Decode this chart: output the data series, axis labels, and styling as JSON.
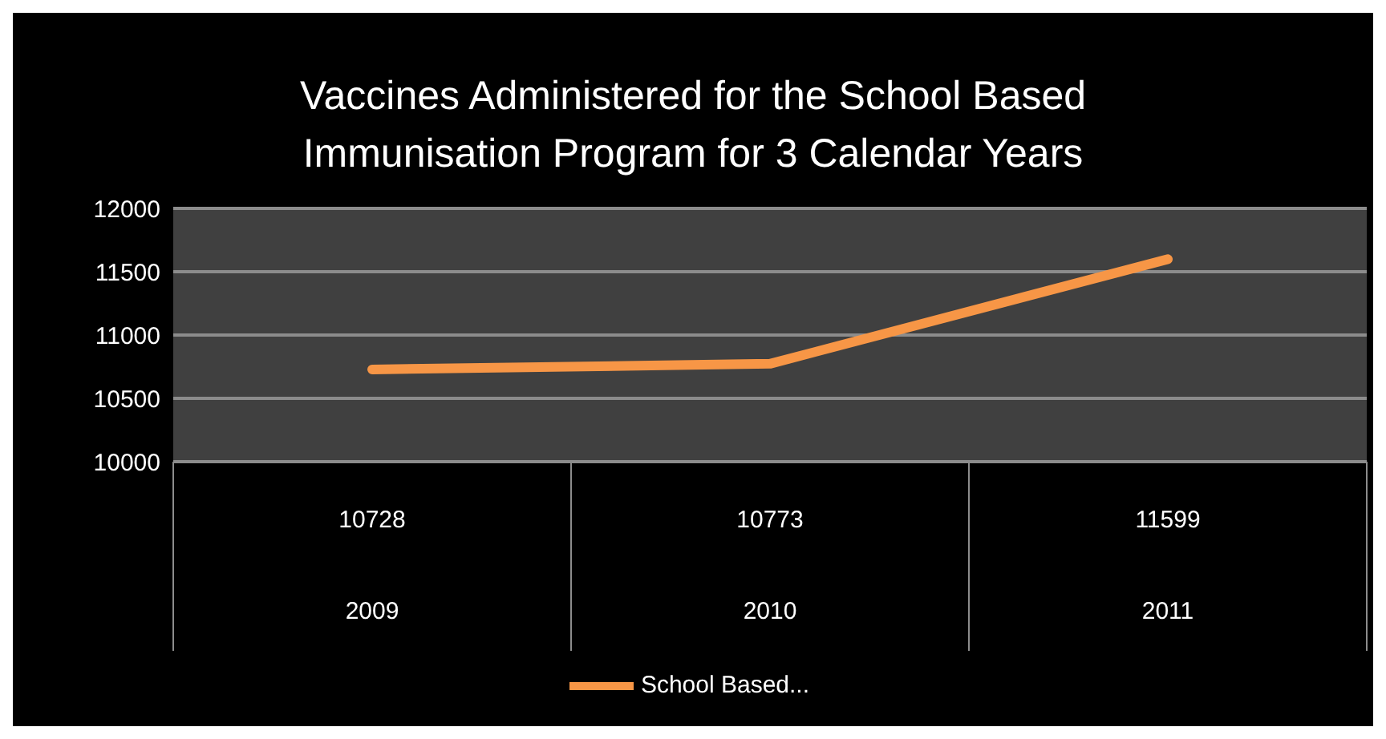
{
  "chart_data": {
    "type": "line",
    "title": "Vaccines Administered for the School Based Immunisation Program  for 3 Calendar Years",
    "categories": [
      "2009",
      "2010",
      "2011"
    ],
    "series": [
      {
        "name": "School Based...",
        "color": "#f79646",
        "values": [
          10728,
          10773,
          11599
        ]
      }
    ],
    "ylim": [
      10000,
      12000
    ],
    "yticks": [
      10000,
      10500,
      11000,
      11500,
      12000
    ],
    "grid": "y",
    "legend": "bottom",
    "data_labels": true,
    "marker": "none"
  }
}
